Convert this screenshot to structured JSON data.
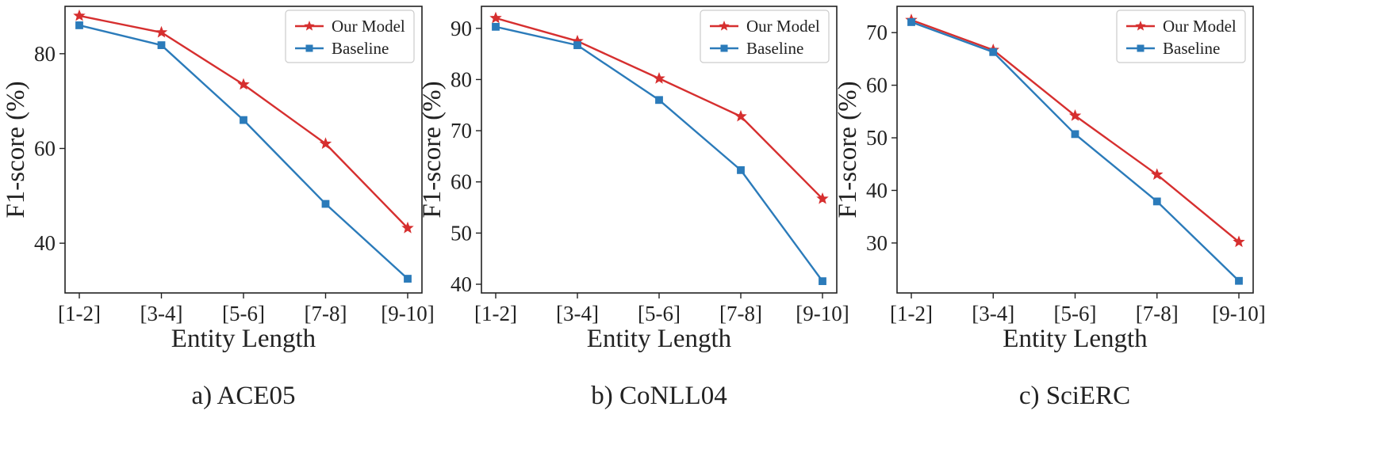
{
  "colors": {
    "our_model": "#d62f2f",
    "baseline": "#2b7bba",
    "axis": "#222222",
    "legend_border": "#cccccc"
  },
  "chart_data": [
    {
      "type": "line",
      "caption": "a) ACE05",
      "categories": [
        "[1-2]",
        "[3-4]",
        "[5-6]",
        "[7-8]",
        "[9-10]"
      ],
      "xlabel": "Entity Length",
      "ylabel": "F1-score (%)",
      "ylim": [
        29.5,
        90.0
      ],
      "yticks": [
        40,
        60,
        80
      ],
      "grid": false,
      "legend_position": "top-right",
      "series": [
        {
          "name": "Our Model",
          "marker": "star",
          "values": [
            88.0,
            84.5,
            73.5,
            61.0,
            43.2
          ]
        },
        {
          "name": "Baseline",
          "marker": "square",
          "values": [
            86.0,
            81.8,
            66.0,
            48.3,
            32.5
          ]
        }
      ]
    },
    {
      "type": "line",
      "caption": "b) CoNLL04",
      "categories": [
        "[1-2]",
        "[3-4]",
        "[5-6]",
        "[7-8]",
        "[9-10]"
      ],
      "xlabel": "Entity Length",
      "ylabel": "F1-score (%)",
      "ylim": [
        38.3,
        94.3
      ],
      "yticks": [
        40,
        50,
        60,
        70,
        80,
        90
      ],
      "grid": false,
      "legend_position": "top-right",
      "series": [
        {
          "name": "Our Model",
          "marker": "star",
          "values": [
            92.0,
            87.5,
            80.2,
            72.8,
            56.7
          ]
        },
        {
          "name": "Baseline",
          "marker": "square",
          "values": [
            90.3,
            86.7,
            76.0,
            62.3,
            40.6
          ]
        }
      ]
    },
    {
      "type": "line",
      "caption": "c) SciERC",
      "categories": [
        "[1-2]",
        "[3-4]",
        "[5-6]",
        "[7-8]",
        "[9-10]"
      ],
      "xlabel": "Entity Length",
      "ylabel": "F1-score (%)",
      "ylim": [
        20.5,
        75.0
      ],
      "yticks": [
        30,
        40,
        50,
        60,
        70
      ],
      "grid": false,
      "legend_position": "top-right",
      "series": [
        {
          "name": "Our Model",
          "marker": "star",
          "values": [
            72.4,
            66.7,
            54.2,
            43.0,
            30.2
          ]
        },
        {
          "name": "Baseline",
          "marker": "square",
          "values": [
            72.0,
            66.3,
            50.7,
            37.9,
            22.8
          ]
        }
      ]
    }
  ]
}
